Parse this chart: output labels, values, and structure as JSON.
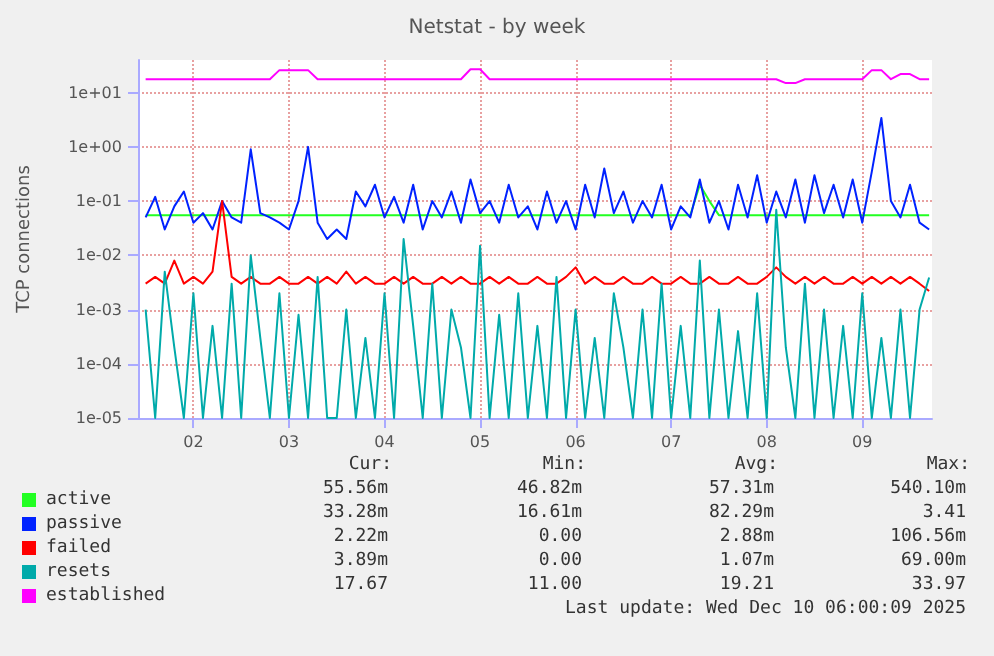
{
  "chart_data": {
    "type": "line",
    "title": "Netstat - by week",
    "ylabel": "TCP connections",
    "x": [
      1.5,
      1.6,
      1.7,
      1.8,
      1.9,
      2.0,
      2.1,
      2.2,
      2.3,
      2.4,
      2.5,
      2.6,
      2.7,
      2.8,
      2.9,
      3.0,
      3.1,
      3.2,
      3.3,
      3.4,
      3.5,
      3.6,
      3.7,
      3.8,
      3.9,
      4.0,
      4.1,
      4.2,
      4.3,
      4.4,
      4.5,
      4.6,
      4.7,
      4.8,
      4.9,
      5.0,
      5.1,
      5.2,
      5.3,
      5.4,
      5.5,
      5.6,
      5.7,
      5.8,
      5.9,
      6.0,
      6.1,
      6.2,
      6.3,
      6.4,
      6.5,
      6.6,
      6.7,
      6.8,
      6.9,
      7.0,
      7.1,
      7.2,
      7.3,
      7.4,
      7.5,
      7.6,
      7.7,
      7.8,
      7.9,
      8.0,
      8.1,
      8.2,
      8.3,
      8.4,
      8.5,
      8.6,
      8.7,
      8.8,
      8.9,
      9.0,
      9.1,
      9.2,
      9.3,
      9.4,
      9.5,
      9.6,
      9.7
    ],
    "series": [
      {
        "name": "active",
        "color": "#22ff22",
        "values": [
          0.055,
          0.055,
          0.055,
          0.055,
          0.055,
          0.055,
          0.055,
          0.055,
          0.055,
          0.055,
          0.055,
          0.055,
          0.055,
          0.055,
          0.055,
          0.055,
          0.055,
          0.055,
          0.055,
          0.055,
          0.055,
          0.055,
          0.055,
          0.055,
          0.055,
          0.055,
          0.055,
          0.055,
          0.055,
          0.055,
          0.055,
          0.055,
          0.055,
          0.055,
          0.055,
          0.055,
          0.055,
          0.055,
          0.055,
          0.055,
          0.055,
          0.055,
          0.055,
          0.055,
          0.055,
          0.055,
          0.055,
          0.055,
          0.055,
          0.055,
          0.055,
          0.055,
          0.055,
          0.055,
          0.055,
          0.055,
          0.055,
          0.055,
          0.2,
          0.1,
          0.055,
          0.055,
          0.055,
          0.055,
          0.055,
          0.055,
          0.055,
          0.055,
          0.055,
          0.055,
          0.055,
          0.055,
          0.055,
          0.055,
          0.055,
          0.055,
          0.055,
          0.055,
          0.055,
          0.055,
          0.055,
          0.055,
          0.055
        ]
      },
      {
        "name": "passive",
        "color": "#0022ff",
        "values": [
          0.05,
          0.12,
          0.03,
          0.08,
          0.15,
          0.04,
          0.06,
          0.03,
          0.1,
          0.05,
          0.04,
          0.9,
          0.06,
          0.05,
          0.04,
          0.03,
          0.1,
          1.0,
          0.04,
          0.02,
          0.03,
          0.02,
          0.15,
          0.08,
          0.2,
          0.05,
          0.12,
          0.04,
          0.2,
          0.03,
          0.1,
          0.05,
          0.15,
          0.04,
          0.25,
          0.06,
          0.1,
          0.04,
          0.2,
          0.05,
          0.08,
          0.03,
          0.15,
          0.04,
          0.1,
          0.03,
          0.2,
          0.05,
          0.4,
          0.06,
          0.15,
          0.04,
          0.1,
          0.05,
          0.2,
          0.03,
          0.08,
          0.05,
          0.25,
          0.04,
          0.1,
          0.03,
          0.2,
          0.05,
          0.3,
          0.04,
          0.15,
          0.05,
          0.25,
          0.04,
          0.3,
          0.06,
          0.2,
          0.05,
          0.25,
          0.04,
          0.35,
          3.41,
          0.1,
          0.05,
          0.2,
          0.04,
          0.03
        ]
      },
      {
        "name": "failed",
        "color": "#ff0000",
        "values": [
          0.003,
          0.004,
          0.003,
          0.008,
          0.003,
          0.004,
          0.003,
          0.005,
          0.1,
          0.004,
          0.003,
          0.004,
          0.003,
          0.003,
          0.004,
          0.003,
          0.003,
          0.004,
          0.003,
          0.004,
          0.003,
          0.005,
          0.003,
          0.004,
          0.003,
          0.003,
          0.004,
          0.003,
          0.004,
          0.003,
          0.003,
          0.004,
          0.003,
          0.004,
          0.003,
          0.003,
          0.004,
          0.003,
          0.004,
          0.003,
          0.003,
          0.004,
          0.003,
          0.003,
          0.004,
          0.006,
          0.003,
          0.004,
          0.003,
          0.003,
          0.004,
          0.003,
          0.003,
          0.004,
          0.003,
          0.003,
          0.004,
          0.003,
          0.003,
          0.004,
          0.003,
          0.003,
          0.004,
          0.003,
          0.003,
          0.004,
          0.006,
          0.004,
          0.003,
          0.004,
          0.003,
          0.004,
          0.003,
          0.003,
          0.004,
          0.003,
          0.004,
          0.003,
          0.004,
          0.003,
          0.004,
          0.003,
          0.0022
        ]
      },
      {
        "name": "resets",
        "color": "#00aaaa",
        "values": [
          0.001,
          1e-05,
          0.005,
          0.0002,
          1e-05,
          0.002,
          1e-05,
          0.0005,
          1e-05,
          0.003,
          1e-05,
          0.01,
          0.0003,
          1e-05,
          0.002,
          1e-05,
          0.0008,
          1e-05,
          0.004,
          1e-05,
          1e-05,
          0.001,
          1e-05,
          0.0003,
          1e-05,
          0.002,
          1e-05,
          0.02,
          0.0005,
          1e-05,
          0.003,
          1e-05,
          0.001,
          0.0002,
          1e-05,
          0.015,
          1e-05,
          0.0008,
          1e-05,
          0.002,
          1e-05,
          0.0005,
          1e-05,
          0.004,
          1e-05,
          0.001,
          1e-05,
          0.0003,
          1e-05,
          0.002,
          0.0002,
          1e-05,
          0.001,
          1e-05,
          0.003,
          1e-05,
          0.0005,
          1e-05,
          0.008,
          1e-05,
          0.001,
          1e-05,
          0.0004,
          1e-05,
          0.002,
          1e-05,
          0.069,
          0.0002,
          1e-05,
          0.003,
          1e-05,
          0.001,
          1e-05,
          0.0005,
          1e-05,
          0.002,
          1e-05,
          0.0003,
          1e-05,
          0.001,
          1e-05,
          0.001,
          0.0039
        ]
      },
      {
        "name": "established",
        "color": "#ff00ff",
        "values": [
          17.7,
          17.7,
          17.7,
          17.7,
          17.7,
          17.7,
          17.7,
          17.7,
          17.7,
          17.7,
          17.7,
          17.7,
          17.7,
          17.7,
          26,
          26,
          26,
          26,
          17.7,
          17.7,
          17.7,
          17.7,
          17.7,
          17.7,
          17.7,
          17.7,
          17.7,
          17.7,
          17.7,
          17.7,
          17.7,
          17.7,
          17.7,
          17.7,
          27,
          27,
          17.7,
          17.7,
          17.7,
          17.7,
          17.7,
          17.7,
          17.7,
          17.7,
          17.7,
          17.7,
          17.7,
          17.7,
          17.7,
          17.7,
          17.7,
          17.7,
          17.7,
          17.7,
          17.7,
          17.7,
          17.7,
          17.7,
          17.7,
          17.7,
          17.7,
          17.7,
          17.7,
          17.7,
          17.7,
          17.7,
          17.7,
          15,
          15,
          17.7,
          17.7,
          17.7,
          17.7,
          17.7,
          17.7,
          17.7,
          26,
          26,
          17.7,
          22,
          22,
          17.7,
          17.67
        ]
      }
    ],
    "xlim": [
      1.42,
      9.73
    ],
    "xticks": [
      {
        "value": 2,
        "label": "02"
      },
      {
        "value": 3,
        "label": "03"
      },
      {
        "value": 4,
        "label": "04"
      },
      {
        "value": 5,
        "label": "05"
      },
      {
        "value": 6,
        "label": "06"
      },
      {
        "value": 7,
        "label": "07"
      },
      {
        "value": 8,
        "label": "08"
      },
      {
        "value": 9,
        "label": "09"
      }
    ],
    "ylim": [
      1e-05,
      40
    ],
    "yticks": [
      {
        "value": 1e-05,
        "label": "1e-05"
      },
      {
        "value": 0.0001,
        "label": "1e-04"
      },
      {
        "value": 0.001,
        "label": "1e-03"
      },
      {
        "value": 0.01,
        "label": "1e-02"
      },
      {
        "value": 0.1,
        "label": "1e-01"
      },
      {
        "value": 1,
        "label": "1e+00"
      },
      {
        "value": 10,
        "label": "1e+01"
      }
    ],
    "log": "y",
    "grid": true,
    "legend": "bottom",
    "marker": "none",
    "line_style": "solid",
    "annotations": [
      "Cur:",
      "Min:",
      "Avg:",
      "Max:",
      "55.56m",
      "46.82m",
      "57.31m",
      "540.10m",
      "33.28m",
      "16.61m",
      "82.29m",
      "3.41",
      "2.22m",
      "0.00",
      "2.88m",
      "106.56m",
      "3.89m",
      "0.00",
      "1.07m",
      "69.00m",
      "17.67",
      "11.00",
      "19.21",
      "33.97",
      "Last update: Wed Dec 10 06:00:09 2025"
    ]
  }
}
